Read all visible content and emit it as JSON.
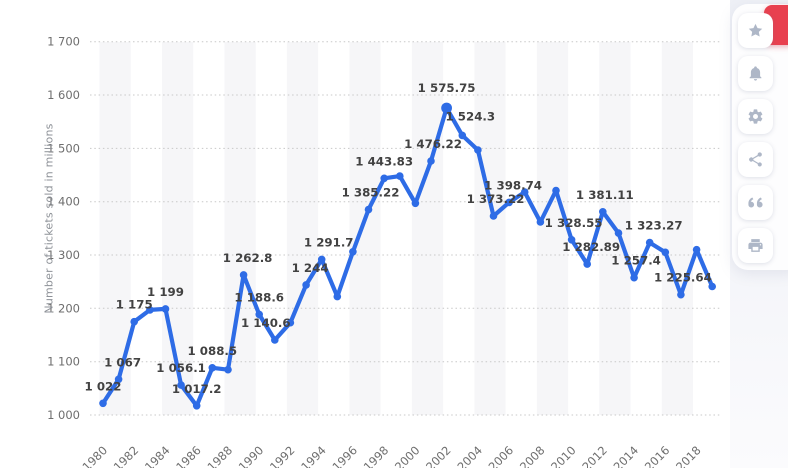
{
  "chart_data": {
    "type": "line",
    "title": "",
    "xlabel": "",
    "ylabel": "Number of tickets sold in millions",
    "ylim": [
      1000,
      1700
    ],
    "ytick_labels": [
      "1 000",
      "1 100",
      "1 200",
      "1 300",
      "1 400",
      "1 500",
      "1 600",
      "1 700"
    ],
    "xtick_labels": [
      "1980",
      "1982",
      "1984",
      "1986",
      "1988",
      "1990",
      "1992",
      "1994",
      "1996",
      "1998",
      "2000",
      "2002",
      "2004",
      "2006",
      "2008",
      "2010",
      "2012",
      "2014",
      "2016",
      "2018"
    ],
    "grid": "dotted horizontal gridlines, alternating light vertical bands",
    "legend": "none",
    "line_color": "#2e6ce6",
    "x": [
      1980,
      1981,
      1982,
      1983,
      1984,
      1985,
      1986,
      1987,
      1988,
      1989,
      1990,
      1991,
      1992,
      1993,
      1994,
      1995,
      1996,
      1997,
      1998,
      1999,
      2000,
      2001,
      2002,
      2003,
      2004,
      2005,
      2006,
      2007,
      2008,
      2009,
      2010,
      2011,
      2012,
      2013,
      2014,
      2015,
      2016,
      2017,
      2018,
      2019
    ],
    "values": [
      1022,
      1067,
      1175,
      1197,
      1199,
      1056.1,
      1017.2,
      1088.5,
      1085,
      1262.8,
      1188.6,
      1140.6,
      1173,
      1244,
      1291.7,
      1222,
      1306,
      1385.22,
      1443.83,
      1448,
      1397,
      1476.22,
      1575.75,
      1524.3,
      1497,
      1373.22,
      1398.74,
      1418,
      1362,
      1421,
      1328.55,
      1282.89,
      1381.11,
      1341,
      1257.4,
      1323.27,
      1305,
      1225.64,
      1310,
      1241
    ],
    "point_labels": [
      "1 022",
      "1 067",
      "1 175",
      null,
      "1 199",
      "1 056.1",
      "1 017.2",
      "1 088.5",
      null,
      "1 262.8",
      "1 188.6",
      "1 140.6",
      null,
      "1 244",
      "1 291.7",
      null,
      null,
      "1 385.22",
      "1 443.83",
      null,
      null,
      "1 476.22",
      "1 575.75",
      "1 524.3",
      null,
      "1 373.22",
      "1 398.74",
      null,
      null,
      null,
      "1 328.55",
      "1 282.89",
      "1 381.11",
      null,
      "1 257.4",
      "1 323.27",
      null,
      "1 225.64",
      null,
      null
    ]
  },
  "colors": {
    "line": "#2e6ce6",
    "point_label_text": "#424242",
    "tick_text": "#6e6e6e",
    "axis_title_text": "#8e9298",
    "gridline": "#c8c8c8",
    "band": "#f6f6f8",
    "sidebar_icon": "#aeb7c7",
    "accent_button": "#e8404f"
  },
  "sidebar": {
    "buttons": [
      {
        "name": "favorite",
        "icon": "star-icon"
      },
      {
        "name": "notifications",
        "icon": "bell-icon"
      },
      {
        "name": "settings",
        "icon": "gear-icon"
      },
      {
        "name": "share",
        "icon": "share-icon"
      },
      {
        "name": "cite",
        "icon": "quote-icon"
      },
      {
        "name": "print",
        "icon": "print-icon"
      }
    ]
  }
}
